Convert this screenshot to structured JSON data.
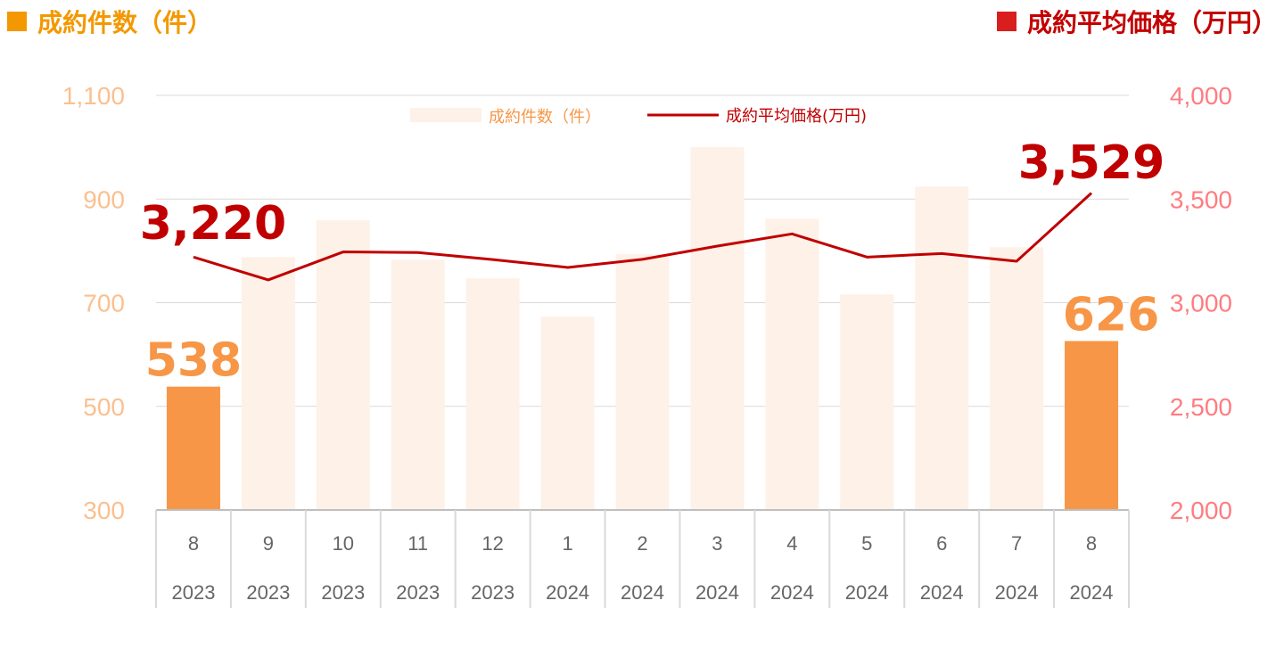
{
  "header": {
    "left_title": "成約件数（件）",
    "right_title": "成約平均価格（万円）",
    "left_color": "#F39800",
    "right_color": "#C40000"
  },
  "chart_data": {
    "type": "bar+line",
    "categories": [
      {
        "month": "8",
        "year": "2023"
      },
      {
        "month": "9",
        "year": "2023"
      },
      {
        "month": "10",
        "year": "2023"
      },
      {
        "month": "11",
        "year": "2023"
      },
      {
        "month": "12",
        "year": "2023"
      },
      {
        "month": "1",
        "year": "2024"
      },
      {
        "month": "2",
        "year": "2024"
      },
      {
        "month": "3",
        "year": "2024"
      },
      {
        "month": "4",
        "year": "2024"
      },
      {
        "month": "5",
        "year": "2024"
      },
      {
        "month": "6",
        "year": "2024"
      },
      {
        "month": "7",
        "year": "2024"
      },
      {
        "month": "8",
        "year": "2024"
      }
    ],
    "series": [
      {
        "name": "成約件数（件）",
        "type": "bar",
        "axis": "left",
        "values": [
          538,
          788,
          859,
          783,
          747,
          673,
          794,
          1000,
          862,
          716,
          924,
          807,
          626
        ],
        "color": "#FDF1E8",
        "highlight_color": "#F79646",
        "highlight_indices": [
          0,
          12
        ]
      },
      {
        "name": "成約平均価格(万円)",
        "type": "line",
        "axis": "right",
        "values": [
          3220,
          3110,
          3245,
          3242,
          3208,
          3170,
          3209,
          3273,
          3332,
          3220,
          3237,
          3200,
          3529
        ],
        "color": "#C00000"
      }
    ],
    "left_axis": {
      "min": 300,
      "max": 1100,
      "ticks": [
        "300",
        "500",
        "700",
        "900",
        "1,100"
      ],
      "color": "#FAC090"
    },
    "right_axis": {
      "min": 2000,
      "max": 4000,
      "ticks": [
        "2,000",
        "2,500",
        "3,000",
        "3,500",
        "4,000"
      ],
      "color": "#FF7C80"
    },
    "data_labels": [
      {
        "series": 0,
        "index": 0,
        "text": "538",
        "color": "#F79646"
      },
      {
        "series": 0,
        "index": 12,
        "text": "626",
        "color": "#F79646"
      },
      {
        "series": 1,
        "index": 0,
        "text": "3,220",
        "color": "#C00000"
      },
      {
        "series": 1,
        "index": 12,
        "text": "3,529",
        "color": "#C00000"
      }
    ],
    "legend": [
      "成約件数（件）",
      "成約平均価格(万円)"
    ],
    "legend_position": "top-center",
    "grid": true
  }
}
